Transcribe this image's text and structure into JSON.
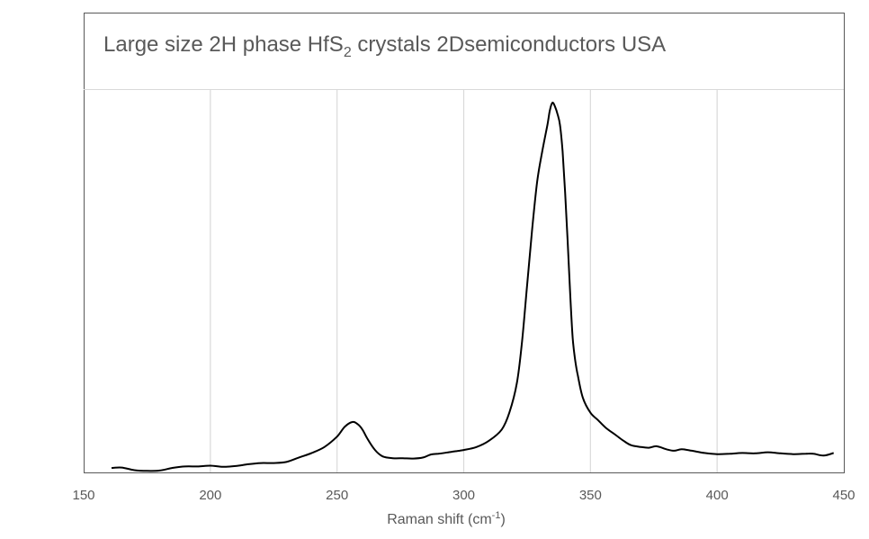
{
  "chart_data": {
    "type": "line",
    "title": {
      "prefix": "Large size 2H phase HfS",
      "subscript": "2",
      "suffix": " crystals 2Dsemiconductors USA"
    },
    "xlabel": {
      "text": "Raman shift (cm",
      "superscript": "-1",
      "close": ")"
    },
    "ylabel": "",
    "xlim": [
      150,
      450
    ],
    "ylim": [
      0,
      1.0
    ],
    "x_ticks": [
      150,
      200,
      250,
      300,
      350,
      400,
      450
    ],
    "grid": {
      "vertical": true,
      "horizontal": false
    },
    "legend": "none",
    "colors": {
      "line": "#000000",
      "grid": "#d9d9d9",
      "frame": "#595959",
      "text": "#595959"
    },
    "series": [
      {
        "x": [
          161,
          165,
          170,
          175,
          180,
          185,
          190,
          195,
          200,
          205,
          210,
          215,
          220,
          225,
          230,
          235,
          240,
          245,
          250,
          253,
          256,
          258,
          260,
          262,
          265,
          268,
          272,
          276,
          280,
          284,
          287,
          290,
          295,
          300,
          305,
          310,
          315,
          318,
          321,
          323,
          325,
          327,
          329,
          331,
          333,
          334,
          335,
          336,
          337,
          338,
          339,
          340,
          341,
          342,
          343,
          344,
          345,
          347,
          350,
          353,
          356,
          360,
          363,
          366,
          370,
          373,
          376,
          380,
          383,
          386,
          390,
          395,
          400,
          405,
          410,
          415,
          420,
          425,
          430,
          435,
          438,
          442,
          446
        ],
        "y": [
          0.012,
          0.013,
          0.006,
          0.004,
          0.005,
          0.012,
          0.016,
          0.016,
          0.018,
          0.015,
          0.017,
          0.022,
          0.025,
          0.025,
          0.028,
          0.04,
          0.052,
          0.068,
          0.096,
          0.122,
          0.135,
          0.13,
          0.115,
          0.09,
          0.06,
          0.043,
          0.038,
          0.038,
          0.037,
          0.04,
          0.048,
          0.05,
          0.055,
          0.06,
          0.068,
          0.085,
          0.115,
          0.16,
          0.24,
          0.35,
          0.5,
          0.65,
          0.78,
          0.86,
          0.93,
          0.97,
          0.99,
          0.98,
          0.96,
          0.93,
          0.86,
          0.75,
          0.62,
          0.48,
          0.36,
          0.3,
          0.26,
          0.2,
          0.16,
          0.14,
          0.12,
          0.1,
          0.085,
          0.073,
          0.068,
          0.066,
          0.07,
          0.062,
          0.058,
          0.062,
          0.058,
          0.052,
          0.049,
          0.05,
          0.052,
          0.051,
          0.054,
          0.051,
          0.049,
          0.05,
          0.05,
          0.045,
          0.052
        ]
      }
    ]
  }
}
